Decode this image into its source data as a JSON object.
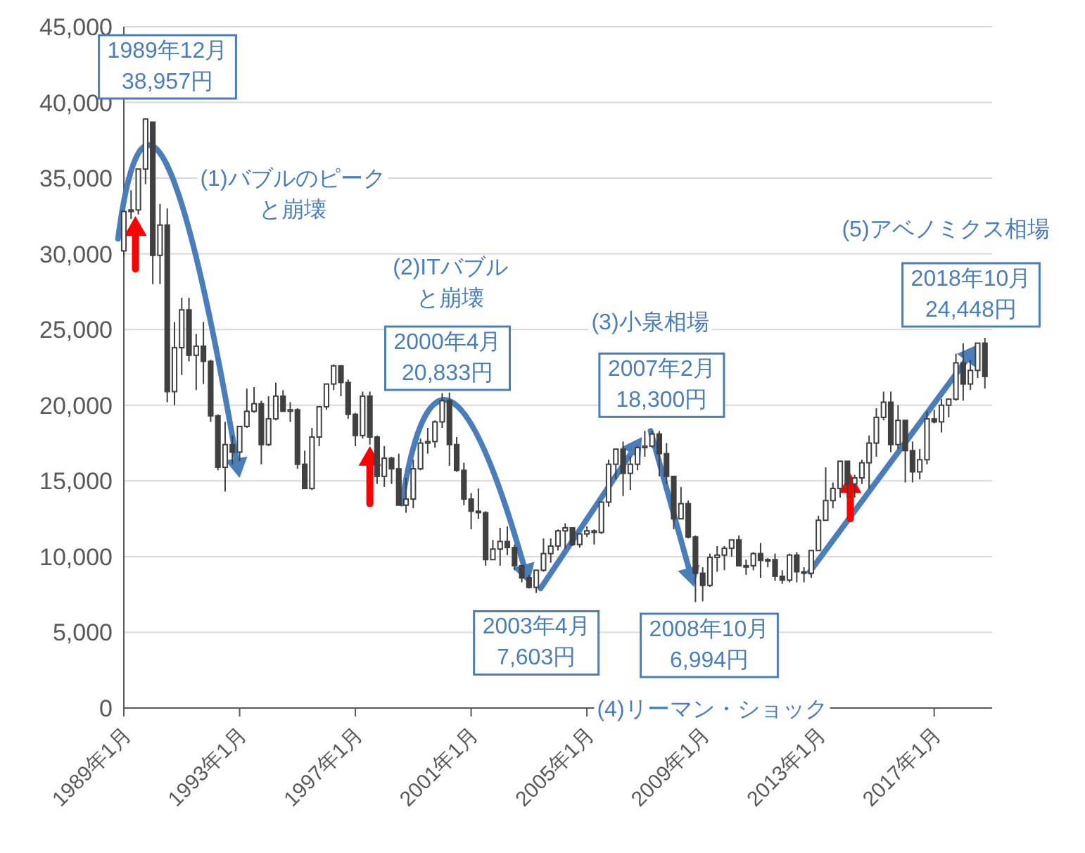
{
  "chart_data": {
    "type": "candlestick",
    "x": [
      "1989-01",
      "1989-04",
      "1989-07",
      "1989-10",
      "1990-01",
      "1990-04",
      "1990-07",
      "1990-10",
      "1991-01",
      "1991-04",
      "1991-07",
      "1991-10",
      "1992-01",
      "1992-04",
      "1992-07",
      "1992-10",
      "1993-01",
      "1993-04",
      "1993-07",
      "1993-10",
      "1994-01",
      "1994-04",
      "1994-07",
      "1994-10",
      "1995-01",
      "1995-04",
      "1995-07",
      "1995-10",
      "1996-01",
      "1996-04",
      "1996-07",
      "1996-10",
      "1997-01",
      "1997-04",
      "1997-07",
      "1997-10",
      "1998-01",
      "1998-04",
      "1998-07",
      "1998-10",
      "1999-01",
      "1999-04",
      "1999-07",
      "1999-10",
      "2000-01",
      "2000-04",
      "2000-07",
      "2000-10",
      "2001-01",
      "2001-04",
      "2001-07",
      "2001-10",
      "2002-01",
      "2002-04",
      "2002-07",
      "2002-10",
      "2003-01",
      "2003-04",
      "2003-07",
      "2003-10",
      "2004-01",
      "2004-04",
      "2004-07",
      "2004-10",
      "2005-01",
      "2005-04",
      "2005-07",
      "2005-10",
      "2006-01",
      "2006-04",
      "2006-07",
      "2006-10",
      "2007-01",
      "2007-04",
      "2007-07",
      "2007-10",
      "2008-01",
      "2008-04",
      "2008-07",
      "2008-10",
      "2009-01",
      "2009-04",
      "2009-07",
      "2009-10",
      "2010-01",
      "2010-04",
      "2010-07",
      "2010-10",
      "2011-01",
      "2011-04",
      "2011-07",
      "2011-10",
      "2012-01",
      "2012-04",
      "2012-07",
      "2012-10",
      "2013-01",
      "2013-04",
      "2013-07",
      "2013-10",
      "2014-01",
      "2014-04",
      "2014-07",
      "2014-10",
      "2015-01",
      "2015-04",
      "2015-07",
      "2015-10",
      "2016-01",
      "2016-04",
      "2016-07",
      "2016-10",
      "2017-01",
      "2017-04",
      "2017-07",
      "2017-10",
      "2018-01",
      "2018-04",
      "2018-07",
      "2018-10"
    ],
    "ohlc": [
      [
        30200,
        32800,
        29800,
        32800
      ],
      [
        32800,
        34200,
        32300,
        32900
      ],
      [
        32900,
        35600,
        32600,
        35600
      ],
      [
        35600,
        38957,
        34600,
        38900
      ],
      [
        38700,
        38700,
        28000,
        29900
      ],
      [
        29900,
        33300,
        28000,
        31900
      ],
      [
        31900,
        33000,
        20200,
        20900
      ],
      [
        20900,
        25500,
        20000,
        23800
      ],
      [
        23800,
        27100,
        22000,
        26300
      ],
      [
        26300,
        27100,
        22900,
        23300
      ],
      [
        23300,
        24700,
        21000,
        23900
      ],
      [
        23900,
        25500,
        21400,
        22900
      ],
      [
        22900,
        23000,
        18900,
        19300
      ],
      [
        19300,
        19400,
        15700,
        15900
      ],
      [
        15900,
        18900,
        14300,
        17400
      ],
      [
        17400,
        18000,
        16100,
        16900
      ],
      [
        16900,
        18600,
        16300,
        18600
      ],
      [
        18600,
        21100,
        18500,
        19600
      ],
      [
        19600,
        21200,
        19500,
        20100
      ],
      [
        20100,
        20300,
        16100,
        17400
      ],
      [
        17400,
        20600,
        17300,
        19100
      ],
      [
        19100,
        21500,
        19000,
        20600
      ],
      [
        20600,
        21000,
        19600,
        19600
      ],
      [
        19600,
        20200,
        18900,
        19700
      ],
      [
        19700,
        19800,
        15800,
        16100
      ],
      [
        16100,
        17000,
        14500,
        14500
      ],
      [
        14500,
        18500,
        14400,
        17900
      ],
      [
        17900,
        19900,
        17300,
        19900
      ],
      [
        19900,
        21400,
        19700,
        21400
      ],
      [
        21400,
        22700,
        21000,
        22600
      ],
      [
        22600,
        22600,
        20600,
        21500
      ],
      [
        21500,
        21700,
        19100,
        19400
      ],
      [
        19400,
        19500,
        17300,
        18000
      ],
      [
        18000,
        20900,
        17800,
        20600
      ],
      [
        20600,
        20900,
        17400,
        17900
      ],
      [
        17900,
        18000,
        14800,
        15300
      ],
      [
        15300,
        17300,
        14600,
        16500
      ],
      [
        16500,
        16600,
        14800,
        15800
      ],
      [
        15800,
        16800,
        13400,
        13400
      ],
      [
        13400,
        15200,
        12900,
        13800
      ],
      [
        13800,
        16400,
        13200,
        15800
      ],
      [
        15800,
        17800,
        15700,
        17500
      ],
      [
        17500,
        18500,
        16800,
        17600
      ],
      [
        17600,
        19000,
        17200,
        18900
      ],
      [
        18900,
        20800,
        18500,
        20300
      ],
      [
        20300,
        20833,
        16000,
        17400
      ],
      [
        17400,
        17900,
        15600,
        15700
      ],
      [
        15700,
        16200,
        13400,
        13800
      ],
      [
        13800,
        14200,
        11800,
        13000
      ],
      [
        13000,
        14500,
        12500,
        12900
      ],
      [
        12900,
        13000,
        9400,
        9800
      ],
      [
        9800,
        11100,
        9800,
        10500
      ],
      [
        10500,
        11900,
        9400,
        11000
      ],
      [
        11000,
        12000,
        10100,
        10600
      ],
      [
        10600,
        10800,
        9100,
        9400
      ],
      [
        9400,
        9400,
        8300,
        8600
      ],
      [
        8600,
        8800,
        7900,
        7970
      ],
      [
        7970,
        9100,
        7603,
        9100
      ],
      [
        9100,
        11200,
        9000,
        10200
      ],
      [
        10200,
        11200,
        9600,
        10700
      ],
      [
        10700,
        11800,
        10400,
        11700
      ],
      [
        11700,
        12200,
        10500,
        11900
      ],
      [
        11900,
        11900,
        10700,
        10800
      ],
      [
        10800,
        11500,
        10600,
        11500
      ],
      [
        11500,
        12000,
        11300,
        11700
      ],
      [
        11700,
        11800,
        10800,
        11600
      ],
      [
        11600,
        13600,
        11500,
        13600
      ],
      [
        13600,
        16400,
        13300,
        16100
      ],
      [
        16100,
        17100,
        15100,
        17100
      ],
      [
        17100,
        17600,
        14000,
        15500
      ],
      [
        15500,
        16600,
        14400,
        16100
      ],
      [
        16100,
        17300,
        15700,
        17200
      ],
      [
        17200,
        18300,
        16600,
        17300
      ],
      [
        17300,
        18300,
        17200,
        18100
      ],
      [
        18100,
        18300,
        15300,
        16800
      ],
      [
        16800,
        17500,
        14800,
        15300
      ],
      [
        15300,
        15300,
        11800,
        12500
      ],
      [
        12500,
        14600,
        12500,
        13500
      ],
      [
        13500,
        13700,
        11200,
        11300
      ],
      [
        11300,
        11400,
        6994,
        8900
      ],
      [
        8900,
        9300,
        7050,
        8100
      ],
      [
        8100,
        10200,
        8000,
        9950
      ],
      [
        9950,
        10700,
        9000,
        10100
      ],
      [
        10100,
        10700,
        9100,
        10550
      ],
      [
        10550,
        11100,
        10000,
        11100
      ],
      [
        11100,
        11400,
        9400,
        9400
      ],
      [
        9400,
        9800,
        8800,
        9400
      ],
      [
        9400,
        10300,
        9100,
        10200
      ],
      [
        10200,
        10900,
        8600,
        9750
      ],
      [
        9750,
        9900,
        9300,
        9800
      ],
      [
        9800,
        10200,
        8400,
        8700
      ],
      [
        8700,
        9100,
        8200,
        8450
      ],
      [
        8450,
        10200,
        8300,
        10100
      ],
      [
        10100,
        10300,
        8300,
        9000
      ],
      [
        9000,
        9300,
        8300,
        8900
      ],
      [
        8900,
        10400,
        8600,
        10400
      ],
      [
        10400,
        12700,
        10400,
        12400
      ],
      [
        12400,
        15900,
        12400,
        13700
      ],
      [
        13700,
        14900,
        13200,
        14500
      ],
      [
        14500,
        16300,
        13900,
        16300
      ],
      [
        16300,
        16300,
        13900,
        14800
      ],
      [
        14800,
        15400,
        13900,
        15200
      ],
      [
        15200,
        16400,
        14800,
        16200
      ],
      [
        16200,
        18000,
        14500,
        17500
      ],
      [
        17500,
        19800,
        16600,
        19200
      ],
      [
        19200,
        20900,
        19000,
        20200
      ],
      [
        20200,
        20900,
        16900,
        17400
      ],
      [
        17400,
        20000,
        17100,
        19000
      ],
      [
        19000,
        19000,
        14900,
        17000
      ],
      [
        17000,
        17600,
        14900,
        15600
      ],
      [
        15600,
        17100,
        15100,
        16400
      ],
      [
        16400,
        19600,
        16100,
        19100
      ],
      [
        19100,
        19700,
        18800,
        18900
      ],
      [
        18900,
        20400,
        18200,
        20000
      ],
      [
        20000,
        20400,
        19200,
        20400
      ],
      [
        20400,
        23400,
        20300,
        22800
      ],
      [
        22800,
        24100,
        20300,
        21400
      ],
      [
        21400,
        23000,
        21000,
        22300
      ],
      [
        22300,
        24100,
        21800,
        24100
      ],
      [
        24100,
        24448,
        21100,
        21900
      ]
    ],
    "xlim": [
      "1989-01",
      "2019-01"
    ],
    "xticks": [
      {
        "value": "1989-01",
        "label": "1989年1月"
      },
      {
        "value": "1993-01",
        "label": "1993年1月"
      },
      {
        "value": "1997-01",
        "label": "1997年1月"
      },
      {
        "value": "2001-01",
        "label": "2001年1月"
      },
      {
        "value": "2005-01",
        "label": "2005年1月"
      },
      {
        "value": "2009-01",
        "label": "2009年1月"
      },
      {
        "value": "2013-01",
        "label": "2013年1月"
      },
      {
        "value": "2017-01",
        "label": "2017年1月"
      }
    ],
    "ylim": [
      0,
      45000
    ],
    "yticks": [
      {
        "value": 0,
        "label": "0"
      },
      {
        "value": 5000,
        "label": "5,000"
      },
      {
        "value": 10000,
        "label": "10,000"
      },
      {
        "value": 15000,
        "label": "15,000"
      },
      {
        "value": 20000,
        "label": "20,000"
      },
      {
        "value": 25000,
        "label": "25,000"
      },
      {
        "value": 30000,
        "label": "30,000"
      },
      {
        "value": 35000,
        "label": "35,000"
      },
      {
        "value": 40000,
        "label": "40,000"
      },
      {
        "value": 45000,
        "label": "45,000"
      }
    ],
    "grid": "y",
    "annotations": [
      "1989年12月\n38,957円",
      "(1)バブルのピークと崩壊",
      "(2)ITバブルと崩壊",
      "2000年4月\n20,833円",
      {
        "text": "2003年4月\n7,603円",
        "x": "2003-04",
        "y": 7603
      },
      "(3)小泉相場",
      {
        "text": "2007年2月\n18,300円",
        "x": "2007-01",
        "y": 18300
      },
      "2008年10月\n6,994円",
      "(4)リーマン・ショック",
      "(5)アベノミクス相場",
      "2018年10月\n24,448円"
    ]
  }
}
